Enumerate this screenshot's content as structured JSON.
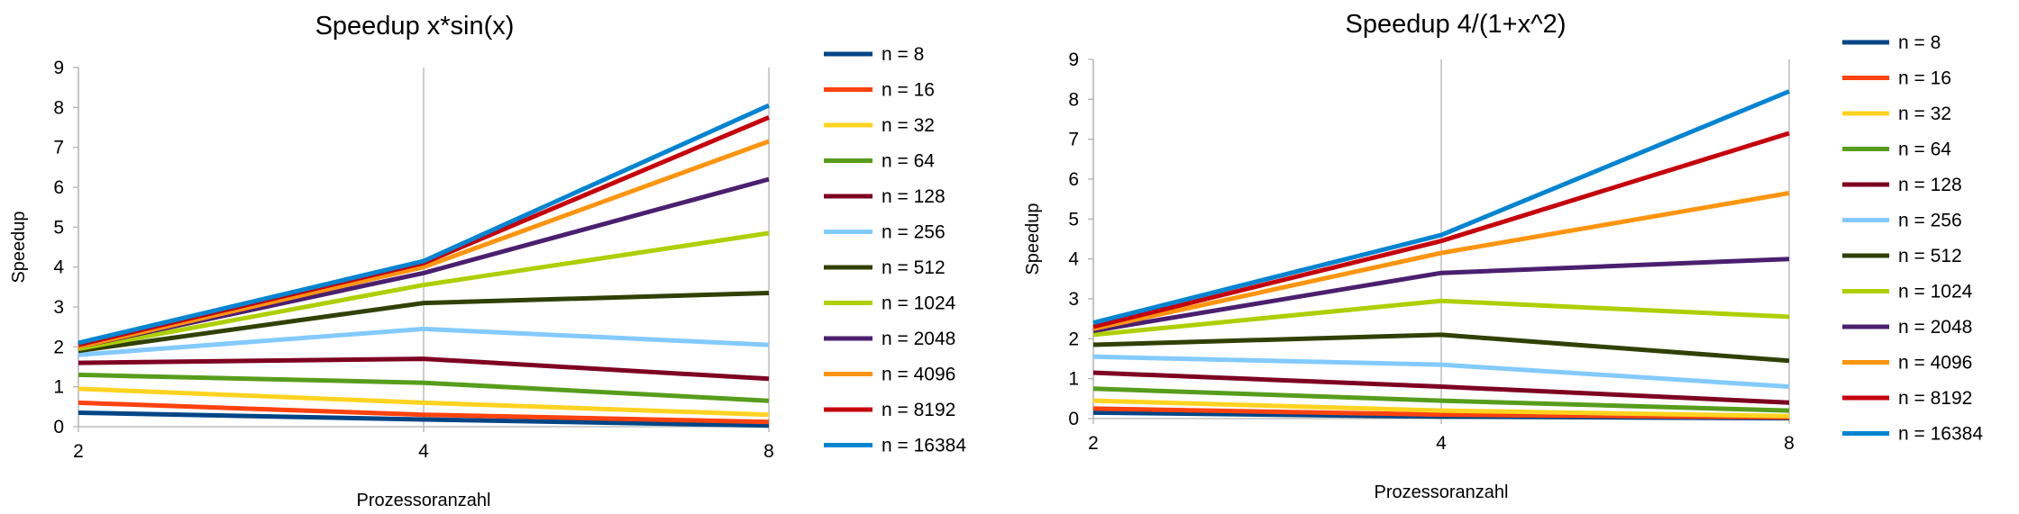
{
  "chart_data": [
    {
      "type": "line",
      "title": "Speedup x*sin(x)",
      "xlabel": "Prozessoranzahl",
      "ylabel": "Speedup",
      "x": [
        2,
        4,
        8
      ],
      "ylim": [
        0,
        9
      ],
      "yticks": [
        0,
        1,
        2,
        3,
        4,
        5,
        6,
        7,
        8,
        9
      ],
      "grid": "vertical",
      "legend": "right",
      "series": [
        {
          "name": "n = 8",
          "color": "#004586",
          "values": [
            0.35,
            0.18,
            0.03
          ]
        },
        {
          "name": "n = 16",
          "color": "#ff420e",
          "values": [
            0.6,
            0.3,
            0.12
          ]
        },
        {
          "name": "n = 32",
          "color": "#ffd320",
          "values": [
            0.95,
            0.6,
            0.3
          ]
        },
        {
          "name": "n = 64",
          "color": "#579d1c",
          "values": [
            1.3,
            1.1,
            0.65
          ]
        },
        {
          "name": "n = 128",
          "color": "#7e0021",
          "values": [
            1.6,
            1.7,
            1.2
          ]
        },
        {
          "name": "n = 256",
          "color": "#83caff",
          "values": [
            1.8,
            2.45,
            2.05
          ]
        },
        {
          "name": "n = 512",
          "color": "#314004",
          "values": [
            1.9,
            3.1,
            3.35
          ]
        },
        {
          "name": "n = 1024",
          "color": "#aecf00",
          "values": [
            1.95,
            3.55,
            4.85
          ]
        },
        {
          "name": "n = 2048",
          "color": "#4b1f6f",
          "values": [
            2.0,
            3.85,
            6.2
          ]
        },
        {
          "name": "n = 4096",
          "color": "#ff950e",
          "values": [
            2.0,
            4.0,
            7.15
          ]
        },
        {
          "name": "n = 8192",
          "color": "#c5000b",
          "values": [
            2.05,
            4.1,
            7.75
          ]
        },
        {
          "name": "n = 16384",
          "color": "#0084d1",
          "values": [
            2.1,
            4.15,
            8.05
          ]
        }
      ]
    },
    {
      "type": "line",
      "title": "Speedup 4/(1+x^2)",
      "xlabel": "Prozessoranzahl",
      "ylabel": "Speedup",
      "x": [
        2,
        4,
        8
      ],
      "ylim": [
        0,
        9
      ],
      "yticks": [
        0,
        1,
        2,
        3,
        4,
        5,
        6,
        7,
        8,
        9
      ],
      "grid": "vertical",
      "legend": "right",
      "series": [
        {
          "name": "n = 8",
          "color": "#004586",
          "values": [
            0.15,
            0.05,
            0.01
          ]
        },
        {
          "name": "n = 16",
          "color": "#ff420e",
          "values": [
            0.25,
            0.1,
            0.03
          ]
        },
        {
          "name": "n = 32",
          "color": "#ffd320",
          "values": [
            0.45,
            0.2,
            0.06
          ]
        },
        {
          "name": "n = 64",
          "color": "#579d1c",
          "values": [
            0.75,
            0.45,
            0.2
          ]
        },
        {
          "name": "n = 128",
          "color": "#7e0021",
          "values": [
            1.15,
            0.8,
            0.4
          ]
        },
        {
          "name": "n = 256",
          "color": "#83caff",
          "values": [
            1.55,
            1.35,
            0.8
          ]
        },
        {
          "name": "n = 512",
          "color": "#314004",
          "values": [
            1.85,
            2.1,
            1.45
          ]
        },
        {
          "name": "n = 1024",
          "color": "#aecf00",
          "values": [
            2.1,
            2.95,
            2.55
          ]
        },
        {
          "name": "n = 2048",
          "color": "#4b1f6f",
          "values": [
            2.2,
            3.65,
            4.0
          ]
        },
        {
          "name": "n = 4096",
          "color": "#ff950e",
          "values": [
            2.25,
            4.15,
            5.65
          ]
        },
        {
          "name": "n = 8192",
          "color": "#c5000b",
          "values": [
            2.3,
            4.45,
            7.15
          ]
        },
        {
          "name": "n = 16384",
          "color": "#0084d1",
          "values": [
            2.4,
            4.6,
            8.2
          ]
        }
      ]
    }
  ]
}
